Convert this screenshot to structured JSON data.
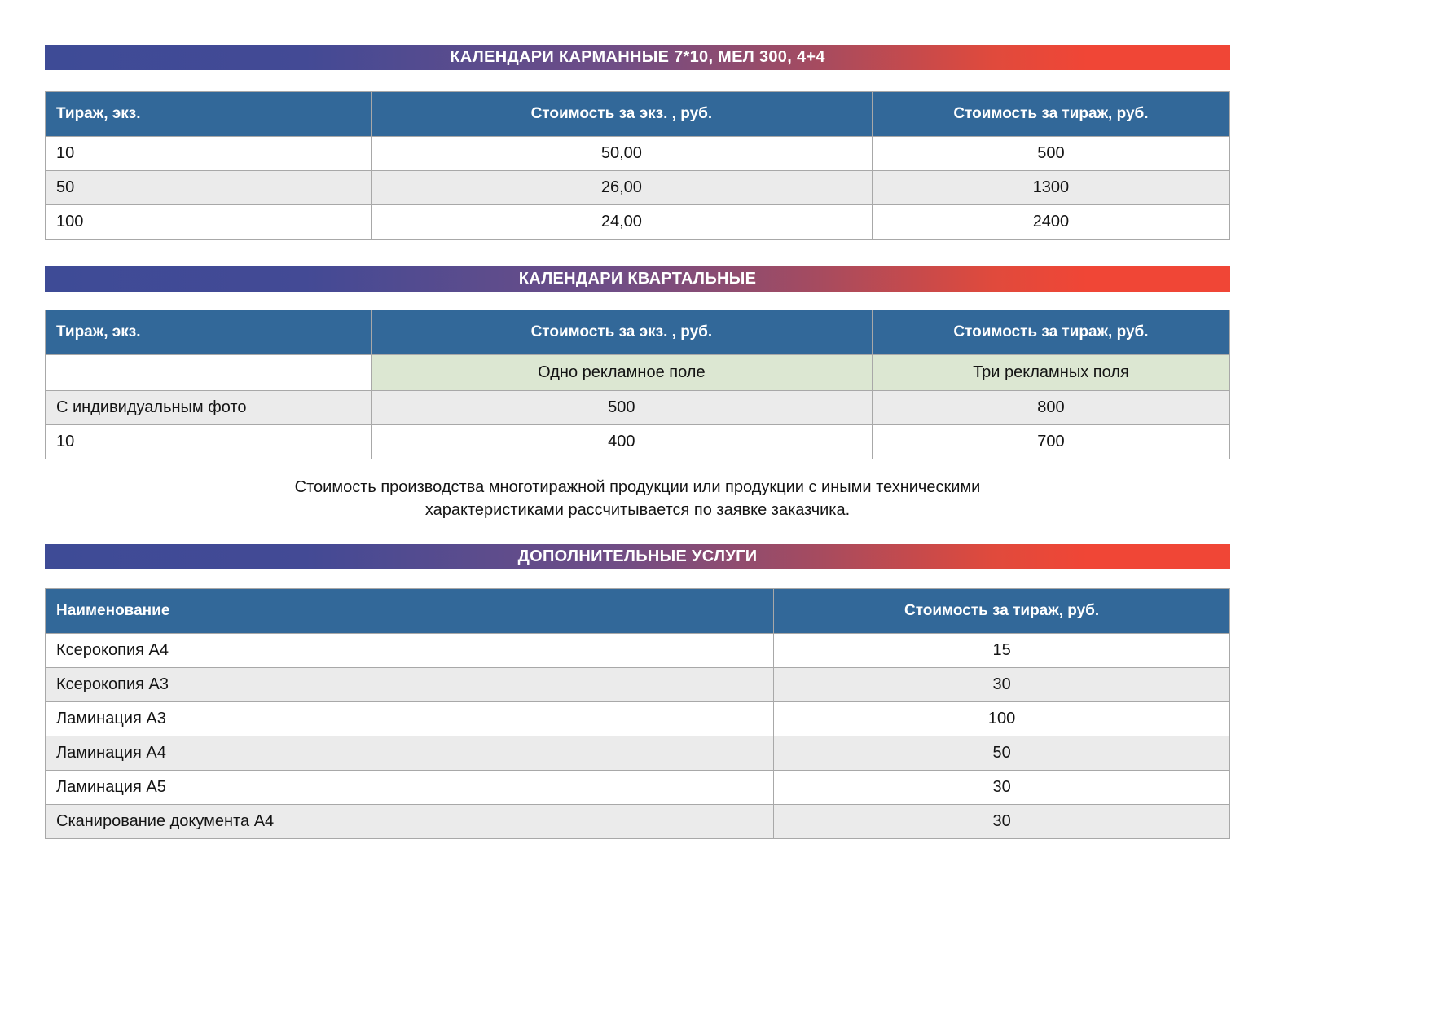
{
  "banners": {
    "pocket": "КАЛЕНДАРИ КАРМАННЫЕ 7*10, МЕЛ 300, 4+4",
    "quarterly": "КАЛЕНДАРИ КВАРТАЛЬНЫЕ",
    "services": "ДОПОЛНИТЕЛЬНЫЕ УСЛУГИ"
  },
  "pocket_table": {
    "headers": [
      "Тираж, экз.",
      "Стоимость за экз. , руб.",
      "Стоимость за тираж, руб."
    ],
    "rows": [
      [
        "10",
        "50,00",
        "500"
      ],
      [
        "50",
        "26,00",
        "1300"
      ],
      [
        "100",
        "24,00",
        "2400"
      ]
    ]
  },
  "quarterly_table": {
    "headers": [
      "Тираж, экз.",
      "Стоимость за экз. , руб.",
      "Стоимость за тираж, руб."
    ],
    "field_options": [
      "",
      "Одно рекламное поле",
      "Три рекламных поля"
    ],
    "rows": [
      [
        "С индивидуальным фото",
        "500",
        "800"
      ],
      [
        "10",
        "400",
        "700"
      ]
    ]
  },
  "note": {
    "line1": "Стоимость производства многотиражной продукции или продукции с иными техническими",
    "line2": "характеристиками рассчитывается по заявке заказчика."
  },
  "services_table": {
    "headers": [
      "Наименование",
      "Стоимость за тираж, руб."
    ],
    "rows": [
      [
        "Ксерокопия А4",
        "15"
      ],
      [
        "Ксерокопия А3",
        "30"
      ],
      [
        "Ламинация А3",
        "100"
      ],
      [
        "Ламинация А4",
        "50"
      ],
      [
        "Ламинация А5",
        "30"
      ],
      [
        "Сканирование документа А4",
        "30"
      ]
    ]
  },
  "colors": {
    "banner_gradient_start": "#3E4B96",
    "banner_gradient_end": "#F04636",
    "table_header_bg": "#326899",
    "row_alt_bg": "#EBEBEB",
    "green_cell_bg": "#DCE7D2",
    "border": "#A8A8A8"
  }
}
